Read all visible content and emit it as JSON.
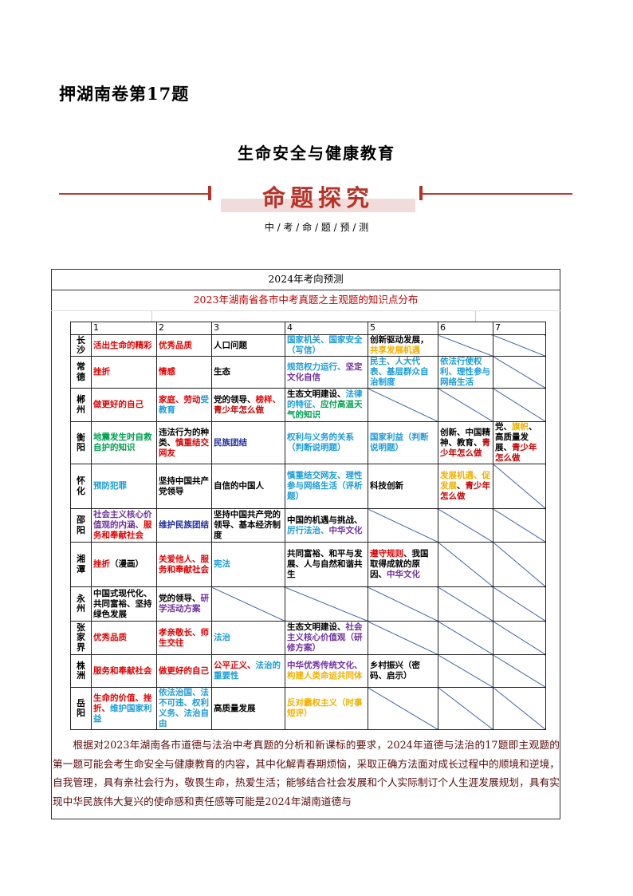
{
  "header": {
    "top_title": "押湖南卷第17题",
    "sub_title": "生命安全与健康教育",
    "banner": "命题探究",
    "banner_sub": "中 / 考 / 命 / 题 / 预 / 测",
    "accent_color": "#b83227"
  },
  "box": {
    "title": "2024年考向预测",
    "subtitle": "2023年湖南省各市中考真题之主观题的知识点分布"
  },
  "colors": {
    "r": "#e00000",
    "dr": "#c00000",
    "b": "#1a9bd7",
    "p": "#7030a0",
    "db": "#1f2aa0",
    "g": "#00a050",
    "o": "#f0b000",
    "k": "#000000"
  },
  "table": {
    "columns": [
      "",
      "1",
      "2",
      "3",
      "4",
      "5",
      "6",
      "7"
    ],
    "rows": [
      {
        "city": "长沙",
        "cells": [
          [
            [
              "r",
              "活出生命的精彩"
            ]
          ],
          [
            [
              "r",
              "优秀品质"
            ]
          ],
          [
            [
              "k",
              "人口问题"
            ]
          ],
          [
            [
              "b",
              "国家机关、国家安全（写信）"
            ]
          ],
          [
            [
              "k",
              "创新驱动发展，"
            ],
            [
              "o",
              "共享发展机遇"
            ]
          ],
          null,
          null
        ]
      },
      {
        "city": "常德",
        "cells": [
          [
            [
              "r",
              "挫折"
            ]
          ],
          [
            [
              "r",
              "情感"
            ]
          ],
          [
            [
              "k",
              "生态"
            ]
          ],
          [
            [
              "b",
              "规范权力运行、"
            ],
            [
              "p",
              "坚定文化自信"
            ]
          ],
          [
            [
              "b",
              "民主、人大代表、基层群众自治制度"
            ]
          ],
          [
            [
              "b",
              "依法行使权利、理性参与网络生活"
            ]
          ],
          null
        ]
      },
      {
        "city": "郴州",
        "cells": [
          [
            [
              "r",
              "做更好的自己"
            ]
          ],
          [
            [
              "r",
              "家庭、劳动"
            ],
            [
              "b",
              "受教育"
            ]
          ],
          [
            [
              "k",
              "党的领导、"
            ],
            [
              "r",
              "榜样、"
            ],
            [
              "dr",
              "青少年怎么做"
            ]
          ],
          [
            [
              "k",
              "生态文明建设、"
            ],
            [
              "b",
              "法律的特征、"
            ],
            [
              "g",
              "应付高温天气的知识"
            ]
          ],
          null,
          null,
          null
        ]
      },
      {
        "city": "衡阳",
        "cells": [
          [
            [
              "g",
              "地震发生时自救自护的知识"
            ]
          ],
          [
            [
              "k",
              "违法行为的种类、"
            ],
            [
              "r",
              "慎重结交网友"
            ]
          ],
          [
            [
              "db",
              "民族团结"
            ]
          ],
          [
            [
              "b",
              "权利与义务的关系（判断说明题）"
            ]
          ],
          [
            [
              "b",
              "国家利益（判断说明题）"
            ]
          ],
          [
            [
              "k",
              "创新、中国精神、教育、"
            ],
            [
              "dr",
              "青少年怎么做"
            ]
          ],
          [
            [
              "k",
              "党、"
            ],
            [
              "o",
              "旗帜"
            ],
            [
              "k",
              "、高质量发展、"
            ],
            [
              "dr",
              "青少年怎么做"
            ]
          ]
        ]
      },
      {
        "city": "怀化",
        "cells": [
          [
            [
              "b",
              "预防犯罪"
            ]
          ],
          [
            [
              "k",
              "坚持中国共产党领导"
            ]
          ],
          [
            [
              "k",
              "自信的中国人"
            ]
          ],
          [
            [
              "b",
              "慎重结交网友、理性参与网络生活（评析题）"
            ]
          ],
          [
            [
              "k",
              "科技创新"
            ]
          ],
          [
            [
              "o",
              "发展机遇、促发展"
            ],
            [
              "k",
              "、"
            ],
            [
              "dr",
              "青少年怎么做"
            ]
          ],
          null
        ]
      },
      {
        "city": "邵阳",
        "cells": [
          [
            [
              "p",
              "社会主义核心价值观的内涵、"
            ],
            [
              "r",
              "服务和奉献社会"
            ]
          ],
          [
            [
              "db",
              "维护民族团结"
            ]
          ],
          [
            [
              "k",
              "坚持中国共产党的领导、基本经济制度"
            ]
          ],
          [
            [
              "k",
              "中国的机遇与挑战、"
            ],
            [
              "b",
              "厉行法治、"
            ],
            [
              "p",
              "中华文化"
            ]
          ],
          null,
          null,
          null
        ]
      },
      {
        "city": "湘潭",
        "cells": [
          [
            [
              "r",
              "挫折"
            ],
            [
              "k",
              "（漫画）"
            ]
          ],
          [
            [
              "r",
              "关爱他人、服务和奉献社会"
            ]
          ],
          [
            [
              "b",
              "宪法"
            ]
          ],
          [
            [
              "k",
              "共同富裕、和平与发展、人与自然和谐共生"
            ]
          ],
          [
            [
              "r",
              "遵守规则"
            ],
            [
              "k",
              "、我国取得成就的原因、"
            ],
            [
              "p",
              "中华文化"
            ]
          ],
          null,
          null
        ]
      },
      {
        "city": "永州",
        "cells": [
          [
            [
              "k",
              "中国式现代化、共同富裕、坚持绿色发展"
            ]
          ],
          [
            [
              "k",
              "党的领导、"
            ],
            [
              "p",
              "研学活动方案"
            ]
          ],
          null,
          null,
          null,
          null,
          null
        ]
      },
      {
        "city": "张家界",
        "cells": [
          [
            [
              "r",
              "优秀品质"
            ]
          ],
          [
            [
              "r",
              "孝亲敬长、师生交往"
            ]
          ],
          [
            [
              "b",
              "法治"
            ]
          ],
          [
            [
              "k",
              "生态文明建设、"
            ],
            [
              "p",
              "社会主义核心价值观（研修方案）"
            ]
          ],
          null,
          null,
          null
        ]
      },
      {
        "city": "株洲",
        "cells": [
          [
            [
              "r",
              "服务和奉献社会"
            ]
          ],
          [
            [
              "r",
              "做更好的自己"
            ]
          ],
          [
            [
              "r",
              "公平正义、"
            ],
            [
              "b",
              "法治的重要性"
            ]
          ],
          [
            [
              "p",
              "中华优秀传统文化、"
            ],
            [
              "o",
              "构建人类命运共同体"
            ]
          ],
          [
            [
              "k",
              "乡村振兴（密码、启示）"
            ]
          ],
          null,
          null
        ]
      },
      {
        "city": "岳阳",
        "cells": [
          [
            [
              "r",
              "生命的价值、挫折、"
            ],
            [
              "b",
              "维护国家利益"
            ]
          ],
          [
            [
              "b",
              "依法治国、法不可违、权利义务、法治自由"
            ]
          ],
          [
            [
              "k",
              "高质量发展"
            ]
          ],
          [
            [
              "o",
              "反对霸权主义（时事短评）"
            ]
          ],
          null,
          null,
          null
        ]
      }
    ]
  },
  "paragraph": "根据对2023年湖南各市道德与法治中考真题的分析和新课标的要求，2024年道德与法治的17题即主观题的第一题可能会考生命安全与健康教育的内容，其中化解青春期烦恼，采取正确方法面对成长过程中的顺境和逆境，自我管理，具有亲社会行为，敬畏生命，热爱生活；能够结合社会发展和个人实际制订个人生涯发展规划，具有实现中华民族伟大复兴的使命感和责任感等可能是2024年湖南道德与"
}
